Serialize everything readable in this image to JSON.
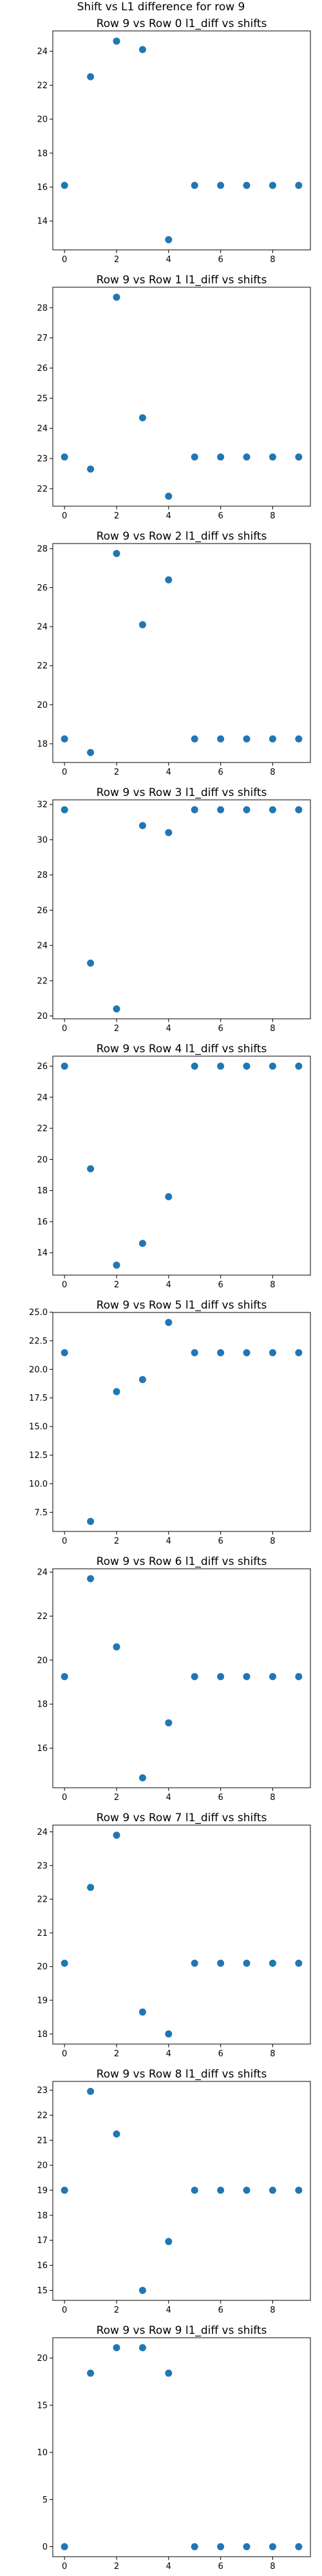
{
  "figure": {
    "suptitle": "Shift vs L1 difference for row 9"
  },
  "chart_data": [
    {
      "type": "scatter",
      "title": "Row 9 vs Row 0 l1_diff vs shifts",
      "xlabel": "",
      "ylabel": "",
      "x": [
        0,
        1,
        2,
        3,
        4,
        5,
        6,
        7,
        8,
        9
      ],
      "y": [
        16.1,
        22.5,
        24.6,
        24.1,
        12.9,
        16.1,
        16.1,
        16.1,
        16.1,
        16.1
      ],
      "xlim": [
        -0.45,
        9.45
      ],
      "ylim": [
        12.3,
        25.2
      ],
      "xticks": [
        0,
        2,
        4,
        6,
        8
      ],
      "yticks": [
        14,
        16,
        18,
        20,
        22,
        24
      ],
      "grid": false,
      "color": "#1f77b4"
    },
    {
      "type": "scatter",
      "title": "Row 9 vs Row 1 l1_diff vs shifts",
      "xlabel": "",
      "ylabel": "",
      "x": [
        0,
        1,
        2,
        3,
        4,
        5,
        6,
        7,
        8,
        9
      ],
      "y": [
        23.05,
        22.65,
        28.35,
        24.35,
        21.75,
        23.05,
        23.05,
        23.05,
        23.05,
        23.05
      ],
      "xlim": [
        -0.45,
        9.45
      ],
      "ylim": [
        21.42,
        28.68
      ],
      "xticks": [
        0,
        2,
        4,
        6,
        8
      ],
      "yticks": [
        22,
        23,
        24,
        25,
        26,
        27,
        28
      ],
      "grid": false,
      "color": "#1f77b4"
    },
    {
      "type": "scatter",
      "title": "Row 9 vs Row 2 l1_diff vs shifts",
      "xlabel": "",
      "ylabel": "",
      "x": [
        0,
        1,
        2,
        3,
        4,
        5,
        6,
        7,
        8,
        9
      ],
      "y": [
        18.25,
        17.55,
        27.75,
        24.1,
        26.4,
        18.25,
        18.25,
        18.25,
        18.25,
        18.25
      ],
      "xlim": [
        -0.45,
        9.45
      ],
      "ylim": [
        17.04,
        28.26
      ],
      "xticks": [
        0,
        2,
        4,
        6,
        8
      ],
      "yticks": [
        18,
        20,
        22,
        24,
        26,
        28
      ],
      "grid": false,
      "color": "#1f77b4"
    },
    {
      "type": "scatter",
      "title": "Row 9 vs Row 3 l1_diff vs shifts",
      "xlabel": "",
      "ylabel": "",
      "x": [
        0,
        1,
        2,
        3,
        4,
        5,
        6,
        7,
        8,
        9
      ],
      "y": [
        31.7,
        23.0,
        20.4,
        30.8,
        30.4,
        31.7,
        31.7,
        31.7,
        31.7,
        31.7
      ],
      "xlim": [
        -0.45,
        9.45
      ],
      "ylim": [
        19.84,
        32.26
      ],
      "xticks": [
        0,
        2,
        4,
        6,
        8
      ],
      "yticks": [
        20,
        22,
        24,
        26,
        28,
        30,
        32
      ],
      "grid": false,
      "color": "#1f77b4"
    },
    {
      "type": "scatter",
      "title": "Row 9 vs Row 4 l1_diff vs shifts",
      "xlabel": "",
      "ylabel": "",
      "x": [
        0,
        1,
        2,
        3,
        4,
        5,
        6,
        7,
        8,
        9
      ],
      "y": [
        26.0,
        19.4,
        13.2,
        14.6,
        17.6,
        26.0,
        26.0,
        26.0,
        26.0,
        26.0
      ],
      "xlim": [
        -0.45,
        9.45
      ],
      "ylim": [
        12.56,
        26.64
      ],
      "xticks": [
        0,
        2,
        4,
        6,
        8
      ],
      "yticks": [
        14,
        16,
        18,
        20,
        22,
        24,
        26
      ],
      "grid": false,
      "color": "#1f77b4"
    },
    {
      "type": "scatter",
      "title": "Row 9 vs Row 5 l1_diff vs shifts",
      "xlabel": "",
      "ylabel": "",
      "x": [
        0,
        1,
        2,
        3,
        4,
        5,
        6,
        7,
        8,
        9
      ],
      "y": [
        21.45,
        6.7,
        18.05,
        19.1,
        24.1,
        21.45,
        21.45,
        21.45,
        21.45,
        21.45
      ],
      "xlim": [
        -0.45,
        9.45
      ],
      "ylim": [
        5.83,
        24.97
      ],
      "xticks": [
        0,
        2,
        4,
        6,
        8
      ],
      "yticks": [
        7.5,
        10.0,
        12.5,
        15.0,
        17.5,
        20.0,
        22.5,
        25.0
      ],
      "ytick_labels": [
        "7.5",
        "10.0",
        "12.5",
        "15.0",
        "17.5",
        "20.0",
        "22.5",
        "25.0"
      ],
      "grid": false,
      "color": "#1f77b4"
    },
    {
      "type": "scatter",
      "title": "Row 9 vs Row 6 l1_diff vs shifts",
      "xlabel": "",
      "ylabel": "",
      "x": [
        0,
        1,
        2,
        3,
        4,
        5,
        6,
        7,
        8,
        9
      ],
      "y": [
        19.25,
        23.7,
        20.6,
        14.65,
        17.15,
        19.25,
        19.25,
        19.25,
        19.25,
        19.25
      ],
      "xlim": [
        -0.45,
        9.45
      ],
      "ylim": [
        14.2,
        24.15
      ],
      "xticks": [
        0,
        2,
        4,
        6,
        8
      ],
      "yticks": [
        16,
        18,
        20,
        22,
        24
      ],
      "grid": false,
      "color": "#1f77b4"
    },
    {
      "type": "scatter",
      "title": "Row 9 vs Row 7 l1_diff vs shifts",
      "xlabel": "",
      "ylabel": "",
      "x": [
        0,
        1,
        2,
        3,
        4,
        5,
        6,
        7,
        8,
        9
      ],
      "y": [
        20.1,
        22.35,
        23.9,
        18.65,
        18.0,
        20.1,
        20.1,
        20.1,
        20.1,
        20.1
      ],
      "xlim": [
        -0.45,
        9.45
      ],
      "ylim": [
        17.7,
        24.2
      ],
      "xticks": [
        0,
        2,
        4,
        6,
        8
      ],
      "yticks": [
        18,
        19,
        20,
        21,
        22,
        23,
        24
      ],
      "grid": false,
      "color": "#1f77b4"
    },
    {
      "type": "scatter",
      "title": "Row 9 vs Row 8 l1_diff vs shifts",
      "xlabel": "",
      "ylabel": "",
      "x": [
        0,
        1,
        2,
        3,
        4,
        5,
        6,
        7,
        8,
        9
      ],
      "y": [
        19.0,
        22.95,
        21.25,
        15.0,
        16.95,
        19.0,
        19.0,
        19.0,
        19.0,
        19.0
      ],
      "xlim": [
        -0.45,
        9.45
      ],
      "ylim": [
        14.6,
        23.35
      ],
      "xticks": [
        0,
        2,
        4,
        6,
        8
      ],
      "yticks": [
        15,
        16,
        17,
        18,
        19,
        20,
        21,
        22,
        23
      ],
      "grid": false,
      "color": "#1f77b4"
    },
    {
      "type": "scatter",
      "title": "Row 9 vs Row 9 l1_diff vs shifts",
      "xlabel": "",
      "ylabel": "",
      "x": [
        0,
        1,
        2,
        3,
        4,
        5,
        6,
        7,
        8,
        9
      ],
      "y": [
        0,
        18.4,
        21.1,
        21.1,
        18.4,
        0,
        0,
        0,
        0,
        0
      ],
      "xlim": [
        -0.45,
        9.45
      ],
      "ylim": [
        -1.06,
        22.16
      ],
      "xticks": [
        0,
        2,
        4,
        6,
        8
      ],
      "yticks": [
        0,
        5,
        10,
        15,
        20
      ],
      "grid": false,
      "color": "#1f77b4"
    }
  ]
}
